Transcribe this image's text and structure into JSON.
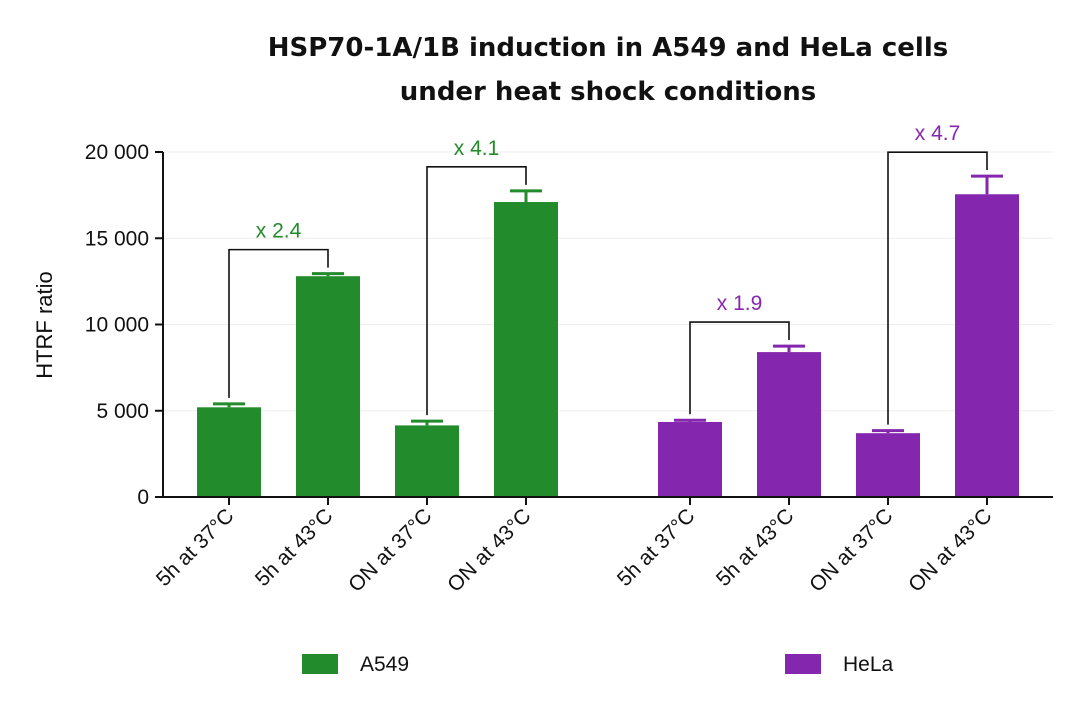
{
  "chart_data": {
    "type": "bar",
    "title": [
      "HSP70-1A/1B induction in A549 and HeLa cells",
      "under heat shock conditions"
    ],
    "ylabel": "HTRF ratio",
    "ylim": [
      0,
      20000
    ],
    "yticks": [
      0,
      5000,
      10000,
      15000,
      20000
    ],
    "ytick_labels": [
      "0",
      "5 000",
      "10 000",
      "15 000",
      "20 000"
    ],
    "grid": true,
    "legend_placement": "bottom",
    "series": [
      {
        "name": "A549",
        "color": "#228B2B",
        "categories": [
          "5h at 37°C",
          "5h at 43°C",
          "ON at 37°C",
          "ON at 43°C"
        ],
        "values": [
          5200,
          12800,
          4150,
          17100
        ],
        "errors": [
          200,
          150,
          250,
          650
        ]
      },
      {
        "name": "HeLa",
        "color": "#8526AE",
        "categories": [
          "5h at 37°C",
          "5h at 43°C",
          "ON at 37°C",
          "ON at 43°C"
        ],
        "values": [
          4350,
          8400,
          3700,
          17550
        ],
        "errors": [
          100,
          350,
          150,
          1050
        ]
      }
    ],
    "annotations": [
      {
        "text": "x 2.4",
        "series": 0,
        "from": 0,
        "to": 1
      },
      {
        "text": "x 4.1",
        "series": 0,
        "from": 2,
        "to": 3
      },
      {
        "text": "x 1.9",
        "series": 1,
        "from": 0,
        "to": 1
      },
      {
        "text": "x 4.7",
        "series": 1,
        "from": 2,
        "to": 3
      }
    ]
  }
}
